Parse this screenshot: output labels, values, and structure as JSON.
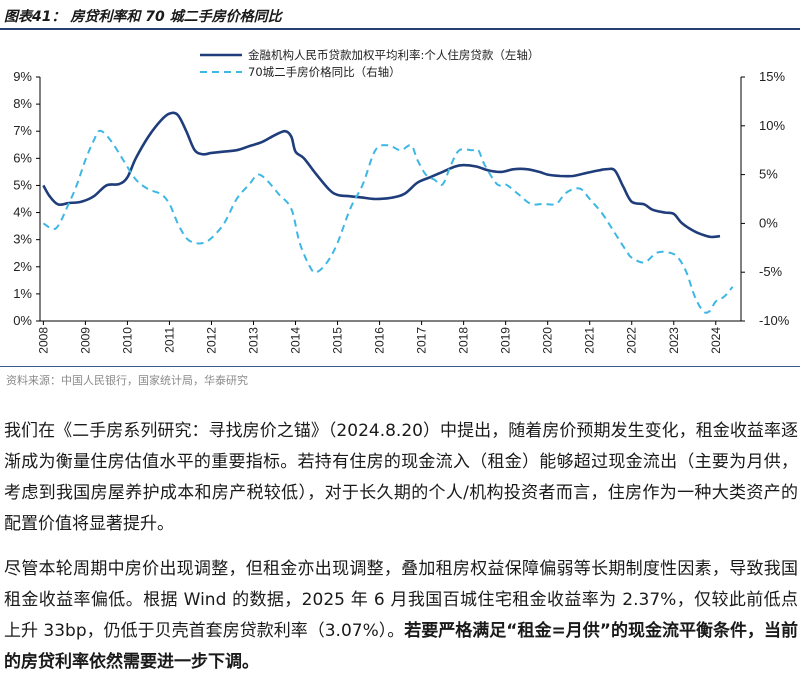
{
  "header": {
    "title": "图表41：  房贷利率和 70 城二手房价格同比"
  },
  "source": "资料来源：中国人民银行，国家统计局，华泰研究",
  "chart_data": {
    "type": "line",
    "x_ticks": [
      "2008",
      "2009",
      "2010",
      "2011",
      "2012",
      "2013",
      "2014",
      "2015",
      "2016",
      "2017",
      "2018",
      "2019",
      "2020",
      "2021",
      "2022",
      "2023",
      "2024"
    ],
    "left_axis": {
      "ticks": [
        "0%",
        "1%",
        "2%",
        "3%",
        "4%",
        "5%",
        "6%",
        "7%",
        "8%",
        "9%"
      ],
      "range": [
        0,
        9
      ]
    },
    "right_axis": {
      "ticks": [
        "-10%",
        "-5%",
        "0%",
        "5%",
        "10%",
        "15%"
      ],
      "range": [
        -10,
        15
      ]
    },
    "legend_position": "top",
    "series": [
      {
        "name": "金融机构人民币贷款加权平均利率:个人住房贷款（左轴）",
        "axis": "left",
        "style": "solid",
        "color": "#1f3d7a",
        "points": [
          [
            2008.0,
            5.0
          ],
          [
            2008.15,
            4.6
          ],
          [
            2008.35,
            4.3
          ],
          [
            2008.6,
            4.35
          ],
          [
            2008.9,
            4.4
          ],
          [
            2009.2,
            4.6
          ],
          [
            2009.5,
            5.0
          ],
          [
            2009.8,
            5.05
          ],
          [
            2010.0,
            5.3
          ],
          [
            2010.2,
            6.0
          ],
          [
            2010.5,
            6.8
          ],
          [
            2010.8,
            7.4
          ],
          [
            2011.0,
            7.65
          ],
          [
            2011.2,
            7.6
          ],
          [
            2011.4,
            7.0
          ],
          [
            2011.6,
            6.3
          ],
          [
            2011.8,
            6.15
          ],
          [
            2012.0,
            6.2
          ],
          [
            2012.3,
            6.25
          ],
          [
            2012.6,
            6.3
          ],
          [
            2012.9,
            6.45
          ],
          [
            2013.2,
            6.6
          ],
          [
            2013.5,
            6.85
          ],
          [
            2013.75,
            7.0
          ],
          [
            2013.9,
            6.8
          ],
          [
            2014.0,
            6.25
          ],
          [
            2014.2,
            6.0
          ],
          [
            2014.5,
            5.4
          ],
          [
            2014.8,
            4.85
          ],
          [
            2015.0,
            4.65
          ],
          [
            2015.3,
            4.6
          ],
          [
            2015.6,
            4.55
          ],
          [
            2015.9,
            4.5
          ],
          [
            2016.3,
            4.55
          ],
          [
            2016.6,
            4.7
          ],
          [
            2016.9,
            5.1
          ],
          [
            2017.2,
            5.3
          ],
          [
            2017.5,
            5.5
          ],
          [
            2017.8,
            5.7
          ],
          [
            2018.0,
            5.75
          ],
          [
            2018.3,
            5.7
          ],
          [
            2018.6,
            5.55
          ],
          [
            2018.9,
            5.5
          ],
          [
            2019.2,
            5.6
          ],
          [
            2019.5,
            5.6
          ],
          [
            2019.8,
            5.5
          ],
          [
            2020.0,
            5.4
          ],
          [
            2020.3,
            5.35
          ],
          [
            2020.6,
            5.35
          ],
          [
            2020.9,
            5.45
          ],
          [
            2021.2,
            5.55
          ],
          [
            2021.4,
            5.6
          ],
          [
            2021.6,
            5.55
          ],
          [
            2021.8,
            4.95
          ],
          [
            2022.0,
            4.4
          ],
          [
            2022.3,
            4.3
          ],
          [
            2022.5,
            4.1
          ],
          [
            2022.8,
            4.0
          ],
          [
            2023.0,
            3.95
          ],
          [
            2023.2,
            3.6
          ],
          [
            2023.5,
            3.3
          ],
          [
            2023.75,
            3.15
          ],
          [
            2023.9,
            3.1
          ],
          [
            2024.1,
            3.13
          ]
        ]
      },
      {
        "name": "70城二手房价格同比（右轴）",
        "axis": "right",
        "style": "dashed",
        "color": "#3db7e4",
        "points": [
          [
            2008.0,
            0.0
          ],
          [
            2008.3,
            -0.5
          ],
          [
            2008.6,
            2.0
          ],
          [
            2008.8,
            4.0
          ],
          [
            2009.0,
            6.5
          ],
          [
            2009.2,
            8.5
          ],
          [
            2009.35,
            9.5
          ],
          [
            2009.6,
            8.5
          ],
          [
            2009.9,
            6.5
          ],
          [
            2010.2,
            4.5
          ],
          [
            2010.5,
            3.5
          ],
          [
            2010.8,
            3.0
          ],
          [
            2011.0,
            2.0
          ],
          [
            2011.2,
            0.0
          ],
          [
            2011.4,
            -1.5
          ],
          [
            2011.6,
            -2.0
          ],
          [
            2011.8,
            -2.0
          ],
          [
            2012.0,
            -1.5
          ],
          [
            2012.3,
            0.0
          ],
          [
            2012.6,
            2.5
          ],
          [
            2012.9,
            4.0
          ],
          [
            2013.1,
            5.0
          ],
          [
            2013.3,
            4.5
          ],
          [
            2013.6,
            3.0
          ],
          [
            2013.9,
            1.5
          ],
          [
            2014.1,
            -2.0
          ],
          [
            2014.35,
            -4.5
          ],
          [
            2014.5,
            -5.0
          ],
          [
            2014.75,
            -4.0
          ],
          [
            2015.0,
            -2.0
          ],
          [
            2015.3,
            1.5
          ],
          [
            2015.6,
            4.0
          ],
          [
            2015.9,
            7.5
          ],
          [
            2016.2,
            8.0
          ],
          [
            2016.5,
            7.5
          ],
          [
            2016.75,
            8.0
          ],
          [
            2016.9,
            6.5
          ],
          [
            2017.1,
            5.0
          ],
          [
            2017.3,
            4.5
          ],
          [
            2017.5,
            4.0
          ],
          [
            2017.7,
            6.0
          ],
          [
            2017.9,
            7.5
          ],
          [
            2018.2,
            7.5
          ],
          [
            2018.35,
            7.5
          ],
          [
            2018.5,
            6.0
          ],
          [
            2018.8,
            4.0
          ],
          [
            2019.0,
            4.0
          ],
          [
            2019.3,
            3.0
          ],
          [
            2019.6,
            2.0
          ],
          [
            2019.9,
            2.0
          ],
          [
            2020.2,
            2.0
          ],
          [
            2020.4,
            3.0
          ],
          [
            2020.6,
            3.5
          ],
          [
            2020.8,
            3.5
          ],
          [
            2021.0,
            2.5
          ],
          [
            2021.3,
            1.0
          ],
          [
            2021.6,
            -1.0
          ],
          [
            2021.9,
            -3.0
          ],
          [
            2022.0,
            -3.5
          ],
          [
            2022.3,
            -4.0
          ],
          [
            2022.6,
            -3.0
          ],
          [
            2022.9,
            -3.0
          ],
          [
            2023.1,
            -3.5
          ],
          [
            2023.3,
            -5.0
          ],
          [
            2023.5,
            -7.5
          ],
          [
            2023.7,
            -9.0
          ],
          [
            2023.85,
            -9.0
          ],
          [
            2024.0,
            -8.0
          ],
          [
            2024.2,
            -7.5
          ],
          [
            2024.4,
            -6.5
          ]
        ]
      }
    ]
  },
  "paragraphs": {
    "p1": "我们在《二手房系列研究：寻找房价之锚》（2024.8.20）中提出，随着房价预期发生变化，租金收益率逐渐成为衡量住房估值水平的重要指标。若持有住房的现金流入（租金）能够超过现金流出（主要为月供，考虑到我国房屋养护成本和房产税较低），对于长久期的个人/机构投资者而言，住房作为一种大类资产的配置价值将显著提升。",
    "p2_normal": "尽管本轮周期中房价出现调整，但租金亦出现调整，叠加租房权益保障偏弱等长期制度性因素，导致我国租金收益率偏低。根据 Wind 的数据，2025 年 6 月我国百城住宅租金收益率为 2.37%，仅较此前低点上升 33bp，仍低于贝壳首套房贷款利率（3.07%）。",
    "p2_bold": "若要严格满足“租金=月供”的现金流平衡条件，当前的房贷利率依然需要进一步下调。"
  }
}
